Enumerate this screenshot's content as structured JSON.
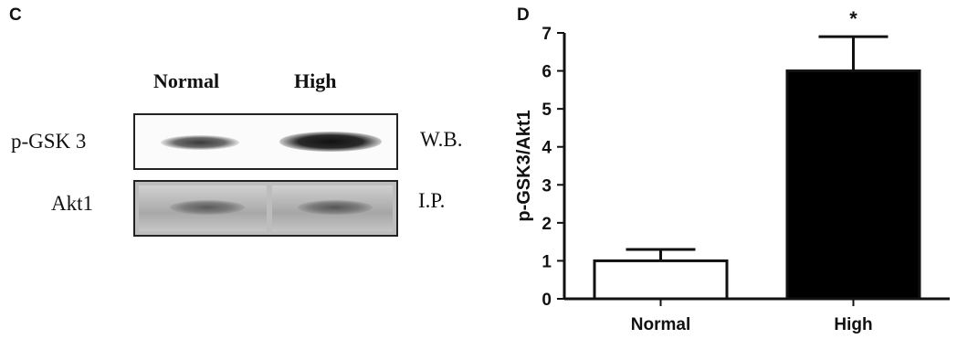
{
  "panel_c": {
    "letter": "C",
    "lane_labels": [
      "Normal",
      "High"
    ],
    "row_labels": [
      "p-GSK 3",
      "Akt1"
    ],
    "method_labels": [
      "W.B.",
      "I.P."
    ]
  },
  "panel_d": {
    "letter": "D"
  },
  "chart_data": {
    "type": "bar",
    "categories": [
      "Normal",
      "High"
    ],
    "values": [
      1.0,
      6.0
    ],
    "error": [
      0.3,
      0.9
    ],
    "bar_colors": [
      "#ffffff",
      "#000000"
    ],
    "annotations": [
      "",
      "*"
    ],
    "ylabel": "p-GSK3/Akt1",
    "xlabel": "",
    "ylim": [
      0,
      7
    ],
    "yticks": [
      "0",
      "1",
      "2",
      "3",
      "4",
      "5",
      "6",
      "7"
    ],
    "grid": false
  }
}
